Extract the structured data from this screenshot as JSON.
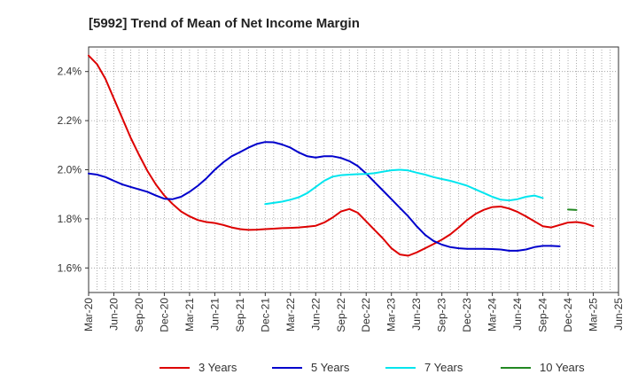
{
  "chart_data": {
    "type": "line",
    "title": "[5992]  Trend of Mean of Net Income Margin",
    "xlabel": "",
    "ylabel": "",
    "x_tick_labels": [
      "Mar-20",
      "Jun-20",
      "Sep-20",
      "Dec-20",
      "Mar-21",
      "Jun-21",
      "Sep-21",
      "Dec-21",
      "Mar-22",
      "Jun-22",
      "Sep-22",
      "Dec-22",
      "Mar-23",
      "Jun-23",
      "Sep-23",
      "Dec-23",
      "Mar-24",
      "Jun-24",
      "Sep-24",
      "Dec-24",
      "Mar-25",
      "Jun-25"
    ],
    "y_tick_labels": [
      "1.6%",
      "1.8%",
      "2.0%",
      "2.2%",
      "2.4%"
    ],
    "y_ticks": [
      1.6,
      1.8,
      2.0,
      2.2,
      2.4
    ],
    "ylim": [
      1.5,
      2.5
    ],
    "grid": true,
    "legend_position": "bottom",
    "series": [
      {
        "name": "3 Years",
        "color": "#dd0000",
        "start": "Mar-20",
        "values": [
          2.465,
          2.43,
          2.37,
          2.29,
          2.21,
          2.13,
          2.06,
          1.995,
          1.94,
          1.895,
          1.86,
          1.83,
          1.81,
          1.795,
          1.787,
          1.783,
          1.775,
          1.765,
          1.758,
          1.755,
          1.756,
          1.758,
          1.76,
          1.762,
          1.763,
          1.765,
          1.768,
          1.772,
          1.785,
          1.805,
          1.83,
          1.84,
          1.825,
          1.79,
          1.755,
          1.72,
          1.68,
          1.655,
          1.65,
          1.663,
          1.68,
          1.697,
          1.715,
          1.737,
          1.765,
          1.795,
          1.82,
          1.837,
          1.848,
          1.85,
          1.842,
          1.828,
          1.81,
          1.79,
          1.77,
          1.765,
          1.775,
          1.785,
          1.787,
          1.782,
          1.77
        ]
      },
      {
        "name": "5 Years",
        "color": "#0000cc",
        "start": "Mar-20",
        "values": [
          1.985,
          1.98,
          1.97,
          1.955,
          1.94,
          1.93,
          1.92,
          1.91,
          1.895,
          1.882,
          1.88,
          1.89,
          1.91,
          1.935,
          1.965,
          2.0,
          2.03,
          2.055,
          2.072,
          2.09,
          2.105,
          2.113,
          2.112,
          2.103,
          2.09,
          2.07,
          2.055,
          2.05,
          2.055,
          2.055,
          2.048,
          2.035,
          2.015,
          1.985,
          1.95,
          1.915,
          1.88,
          1.845,
          1.81,
          1.77,
          1.735,
          1.71,
          1.695,
          1.685,
          1.68,
          1.678,
          1.678,
          1.678,
          1.677,
          1.675,
          1.67,
          1.67,
          1.675,
          1.685,
          1.69,
          1.69,
          1.688
        ]
      },
      {
        "name": "7 Years",
        "color": "#00e5ee",
        "start": "Dec-21",
        "values": [
          1.86,
          1.865,
          1.87,
          1.878,
          1.888,
          1.905,
          1.93,
          1.955,
          1.972,
          1.978,
          1.98,
          1.982,
          1.983,
          1.986,
          1.992,
          1.998,
          2.0,
          1.997,
          1.988,
          1.98,
          1.97,
          1.962,
          1.955,
          1.945,
          1.935,
          1.92,
          1.905,
          1.89,
          1.878,
          1.875,
          1.88,
          1.89,
          1.895,
          1.885
        ]
      },
      {
        "name": "10 Years",
        "color": "#228822",
        "start": "Dec-24",
        "values": [
          1.838,
          1.836
        ]
      }
    ]
  }
}
